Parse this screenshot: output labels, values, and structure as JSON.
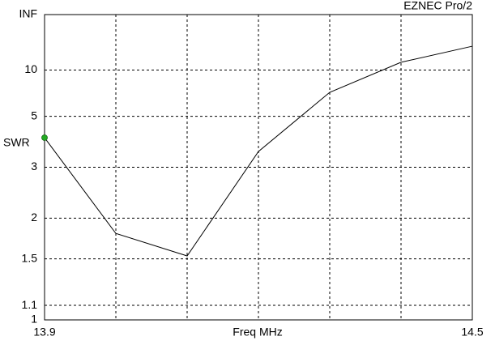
{
  "chart_data": {
    "type": "line",
    "title": "EZNEC Pro/2",
    "xlabel": "Freq MHz",
    "ylabel": "SWR",
    "yscale": "swr",
    "x": [
      13.9,
      14.0,
      14.1,
      14.2,
      14.3,
      14.4,
      14.5
    ],
    "series": [
      {
        "name": "SWR",
        "color": "#000000",
        "values": [
          3.96,
          1.79,
          1.53,
          3.46,
          6.85,
          11.8,
          18.3
        ]
      }
    ],
    "marker": {
      "index": 0,
      "color": "#22aa22"
    },
    "xlim": [
      13.9,
      14.5
    ],
    "xticks": [
      13.9,
      14.0,
      14.1,
      14.2,
      14.3,
      14.4,
      14.5
    ],
    "ylim": [
      1,
      "Infinity"
    ],
    "yticks": [
      1,
      1.1,
      1.5,
      2,
      3,
      5,
      10,
      {
        "value": "Infinity",
        "label": "INF"
      }
    ],
    "grid": true
  }
}
